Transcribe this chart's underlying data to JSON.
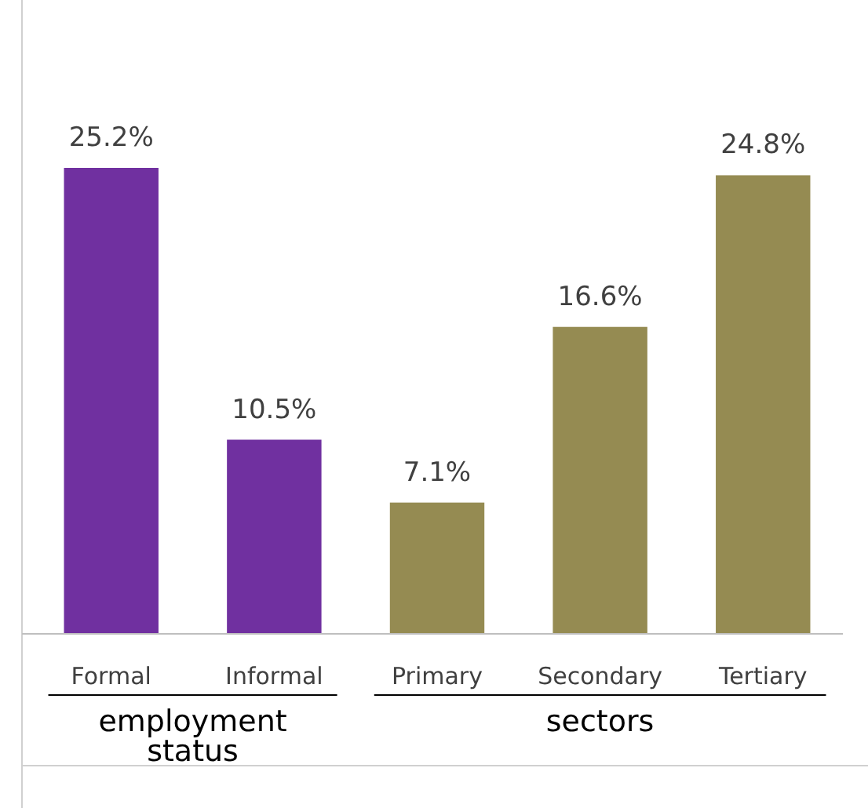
{
  "chart_data": {
    "type": "bar",
    "categories": [
      "Formal",
      "Informal",
      "Primary",
      "Secondary",
      "Tertiary"
    ],
    "values": [
      25.2,
      10.5,
      7.1,
      16.6,
      24.8
    ],
    "colors": [
      "#7030a0",
      "#7030a0",
      "#958b52",
      "#958b52",
      "#958b52"
    ],
    "value_labels": [
      "25.2%",
      "10.5%",
      "7.1%",
      "16.6%",
      "24.8%"
    ],
    "annotations": [
      "employment status",
      "sectors"
    ]
  }
}
